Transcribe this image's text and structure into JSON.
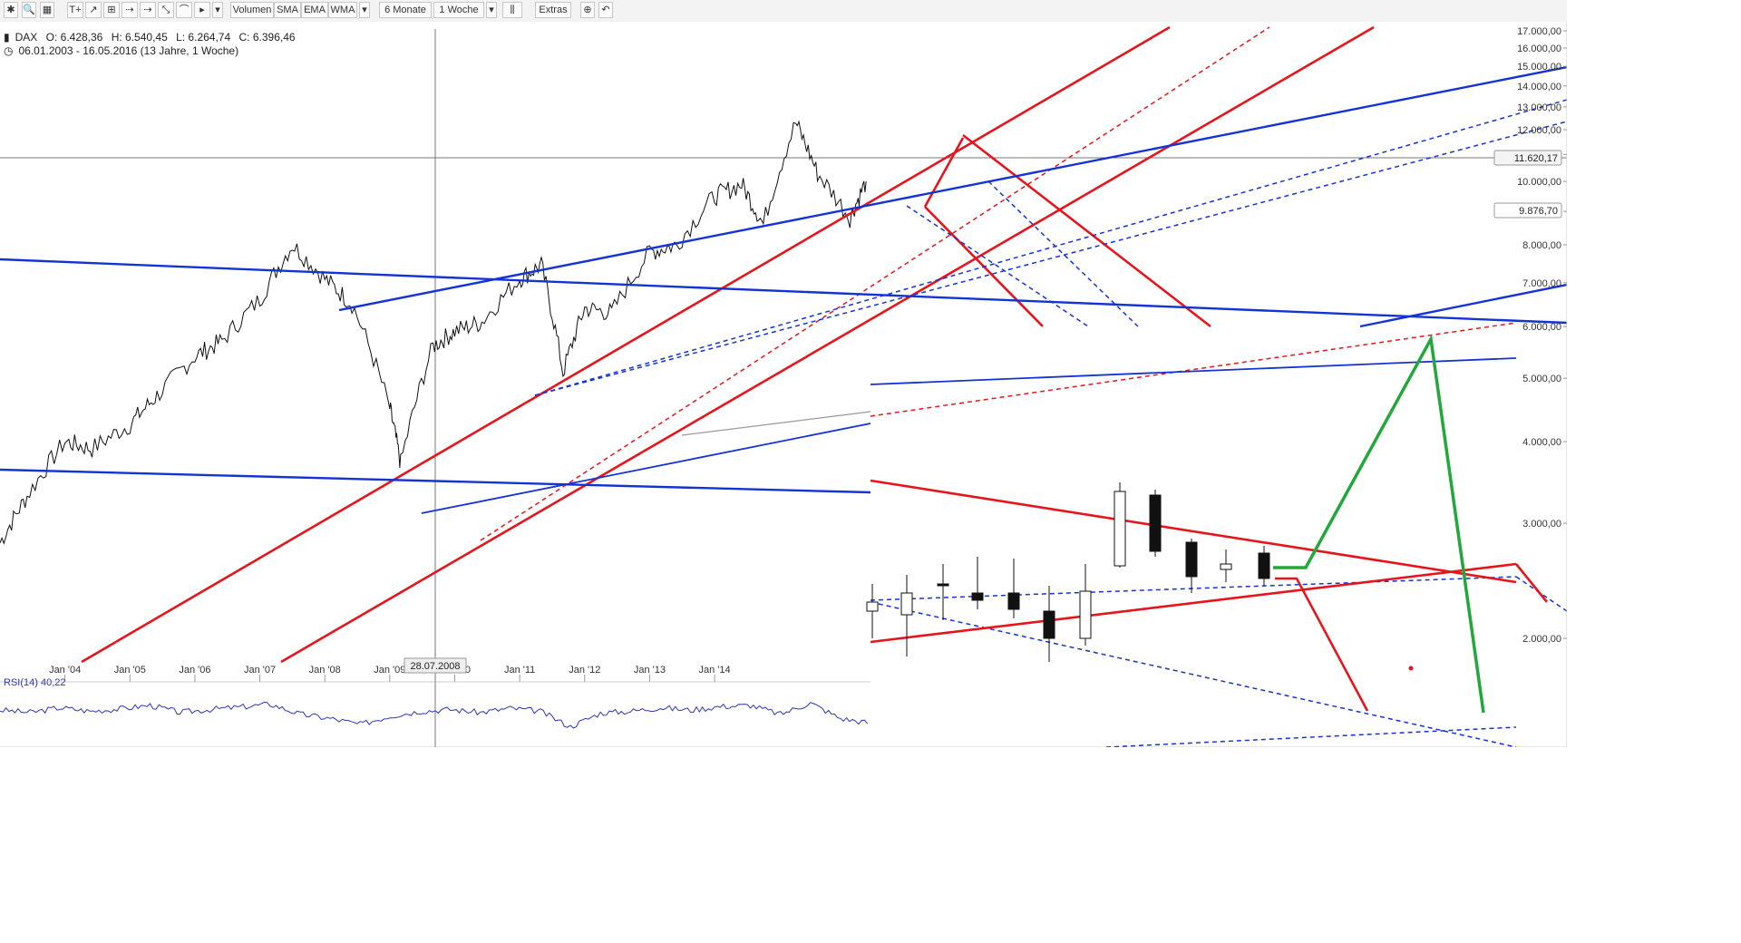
{
  "toolbar": {
    "items": [
      "✱",
      "🔍",
      "▦",
      "T+",
      "↗",
      "⊞",
      "⇢",
      "⇢",
      "⤡",
      "⌒",
      "▸",
      "▾",
      "Volumen",
      "SMA",
      "EMA",
      "WMA",
      "▾",
      "6 Monate",
      "1 Woche",
      "▾",
      "⫼",
      "Extras",
      "⊕",
      "↶"
    ],
    "volumen_label": "Volumen",
    "sma_label": "SMA",
    "ema_label": "EMA",
    "wma_label": "WMA",
    "period_label": "6 Monate",
    "interval_label": "1 Woche",
    "extras_label": "Extras"
  },
  "info": {
    "symbol": "DAX",
    "open": "O: 6.428,36",
    "high": "H: 6.540,45",
    "low": "L: 6.264,74",
    "close": "C: 6.396,46",
    "range": "06.01.2003 - 16.05.2016 (13 Jahre, 1 Woche)"
  },
  "crosshair_date": "28.07.2008",
  "price_flags": [
    "11.620,17",
    "9.876,70"
  ],
  "rsi": {
    "label": "RSI(14)",
    "value": "40,22"
  },
  "colors": {
    "line": "#111111",
    "red": "#e8141b",
    "blue": "#1433d6",
    "green": "#21a83a",
    "rsi": "#2b35b8",
    "grid": "#eeeeee"
  },
  "chart_data": [
    {
      "type": "line",
      "title": "DAX",
      "x_ticks": [
        "Jan '04",
        "Jan '05",
        "Jan '06",
        "Jan '07",
        "Jan '08",
        "Jan '09",
        "Jan '10",
        "Jan '11",
        "Jan '12",
        "Jan '13",
        "Jan '14"
      ],
      "y_ticks": [
        "17.000,00",
        "16.000,00",
        "15.000,00",
        "14.000,00",
        "13.000,00",
        "12.000,00",
        "11.000,00",
        "10.000,00",
        "9.000,00",
        "8.000,00",
        "7.000,00",
        "6.000,00",
        "5.000,00",
        "4.000,00",
        "3.000,00",
        "2.000,00"
      ],
      "y_scale": "log",
      "series": [
        {
          "name": "DAX",
          "x": [
            "2003-01",
            "2003-06",
            "2004-01",
            "2004-06",
            "2005-01",
            "2005-06",
            "2006-01",
            "2006-06",
            "2007-01",
            "2007-07",
            "2008-01",
            "2008-06",
            "2009-01",
            "2009-03",
            "2009-09",
            "2010-01",
            "2010-06",
            "2011-01",
            "2011-05",
            "2011-09",
            "2012-01",
            "2012-06",
            "2013-01",
            "2013-06",
            "2014-01",
            "2014-06",
            "2014-10",
            "2015-04",
            "2015-08",
            "2016-02",
            "2016-05"
          ],
          "values": [
            2800,
            3300,
            4000,
            3900,
            4250,
            4700,
            5400,
            5700,
            6600,
            8000,
            7100,
            6500,
            4500,
            3700,
            5600,
            5900,
            6100,
            7100,
            7450,
            5100,
            6400,
            6300,
            7800,
            8000,
            9500,
            9900,
            8600,
            12300,
            10300,
            8800,
            10000
          ]
        }
      ]
    },
    {
      "type": "line",
      "title": "RSI(14)",
      "series": [
        {
          "name": "RSI(14)",
          "values": [
            62,
            58,
            66,
            60,
            64,
            70,
            58,
            63,
            67,
            72,
            55,
            48,
            38,
            52,
            60,
            63,
            58,
            65,
            60,
            34,
            57,
            60,
            66,
            62,
            68,
            70,
            55,
            74,
            48,
            40
          ]
        }
      ],
      "last_value": 40.22
    }
  ]
}
